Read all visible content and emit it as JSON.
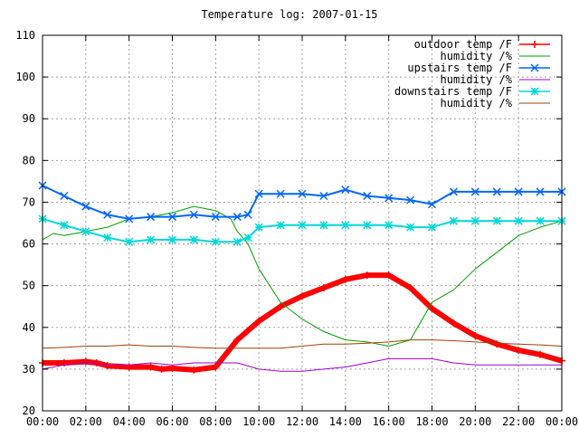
{
  "chart_data": {
    "type": "line",
    "title": "Temperature log: 2007-01-15",
    "xlabel": "",
    "ylabel": "",
    "xlim": [
      "00:00",
      "24:00"
    ],
    "ylim": [
      20,
      110
    ],
    "x_ticks": [
      "00:00",
      "02:00",
      "04:00",
      "06:00",
      "08:00",
      "10:00",
      "12:00",
      "14:00",
      "16:00",
      "18:00",
      "20:00",
      "22:00",
      "00:00"
    ],
    "y_ticks": [
      20,
      30,
      40,
      50,
      60,
      70,
      80,
      90,
      100,
      110
    ],
    "grid": true,
    "legend_position": "top-right",
    "series": [
      {
        "name": "outdoor temp /F",
        "color": "#ff0000",
        "marker": "plus",
        "x": [
          0,
          1,
          2,
          2.5,
          3,
          4,
          5,
          5.5,
          6,
          7,
          8,
          9,
          10,
          11,
          12,
          13,
          14,
          15,
          16,
          17,
          18,
          19,
          20,
          21,
          22,
          23,
          24
        ],
        "y": [
          31.5,
          31.5,
          31.8,
          31.5,
          30.8,
          30.5,
          30.5,
          30,
          30.2,
          29.8,
          30.5,
          37,
          41.5,
          45,
          47.5,
          49.5,
          51.5,
          52.5,
          52.5,
          49.5,
          44.5,
          41,
          38,
          36,
          34.5,
          33.5,
          32
        ]
      },
      {
        "name": "humidity /%",
        "color": "#00a000",
        "marker": "none",
        "x": [
          0,
          0.5,
          1,
          2,
          3,
          4,
          5,
          6,
          7,
          8,
          8.7,
          9,
          9.5,
          10,
          11,
          12,
          13,
          14,
          15,
          16,
          17,
          18,
          19,
          20,
          21,
          22,
          23,
          24
        ],
        "y": [
          61,
          62.5,
          62,
          63,
          64,
          66,
          66.5,
          67.5,
          69,
          68,
          66,
          63,
          60,
          54,
          46,
          42,
          39,
          37,
          36.5,
          35.5,
          37,
          46,
          49,
          54,
          58,
          62,
          64,
          65.5
        ]
      },
      {
        "name": "upstairs temp /F",
        "color": "#0066ff",
        "marker": "x",
        "x": [
          0,
          1,
          2,
          3,
          4,
          5,
          6,
          7,
          8,
          9,
          9.5,
          10,
          11,
          12,
          13,
          14,
          15,
          16,
          17,
          18,
          19,
          20,
          21,
          22,
          23,
          24
        ],
        "y": [
          74,
          71.5,
          69,
          67,
          66,
          66.5,
          66.5,
          67,
          66.5,
          66.5,
          67,
          72,
          72,
          72,
          71.5,
          73,
          71.5,
          71,
          70.5,
          69.5,
          72.5,
          72.5,
          72.5,
          72.5,
          72.5,
          72.5
        ]
      },
      {
        "name": "humidity /%",
        "color": "#a000d0",
        "marker": "none",
        "x": [
          0,
          1,
          2,
          3,
          4,
          5,
          6,
          7,
          8,
          9,
          10,
          11,
          12,
          13,
          14,
          15,
          16,
          17,
          18,
          19,
          20,
          21,
          22,
          23,
          24
        ],
        "y": [
          30,
          31,
          31.5,
          31,
          31,
          31.5,
          31,
          31.5,
          31.5,
          31.5,
          30,
          29.5,
          29.5,
          30,
          30.5,
          31.5,
          32.5,
          32.5,
          32.5,
          31.5,
          31,
          31,
          31,
          31,
          31
        ]
      },
      {
        "name": "downstairs temp /F",
        "color": "#00d8d8",
        "marker": "star",
        "x": [
          0,
          1,
          2,
          3,
          4,
          5,
          6,
          7,
          8,
          9,
          9.5,
          10,
          11,
          12,
          13,
          14,
          15,
          16,
          17,
          18,
          19,
          20,
          21,
          22,
          23,
          24
        ],
        "y": [
          66,
          64.5,
          63,
          61.5,
          60.5,
          61,
          61,
          61,
          60.5,
          60.5,
          61.5,
          64,
          64.5,
          64.5,
          64.5,
          64.5,
          64.5,
          64.5,
          64,
          64,
          65.5,
          65.5,
          65.5,
          65.5,
          65.5,
          65.5
        ]
      },
      {
        "name": "humidity /%",
        "color": "#a04000",
        "marker": "none",
        "x": [
          0,
          1,
          2,
          3,
          4,
          5,
          6,
          7,
          8,
          9,
          10,
          11,
          12,
          13,
          14,
          15,
          16,
          17,
          18,
          19,
          20,
          21,
          22,
          23,
          24
        ],
        "y": [
          35,
          35.2,
          35.5,
          35.5,
          35.8,
          35.5,
          35.5,
          35.2,
          35,
          35,
          35,
          35,
          35.5,
          36,
          36,
          36.2,
          36.5,
          37,
          37,
          36.8,
          36.5,
          36.2,
          36,
          35.8,
          35.5
        ]
      }
    ]
  }
}
